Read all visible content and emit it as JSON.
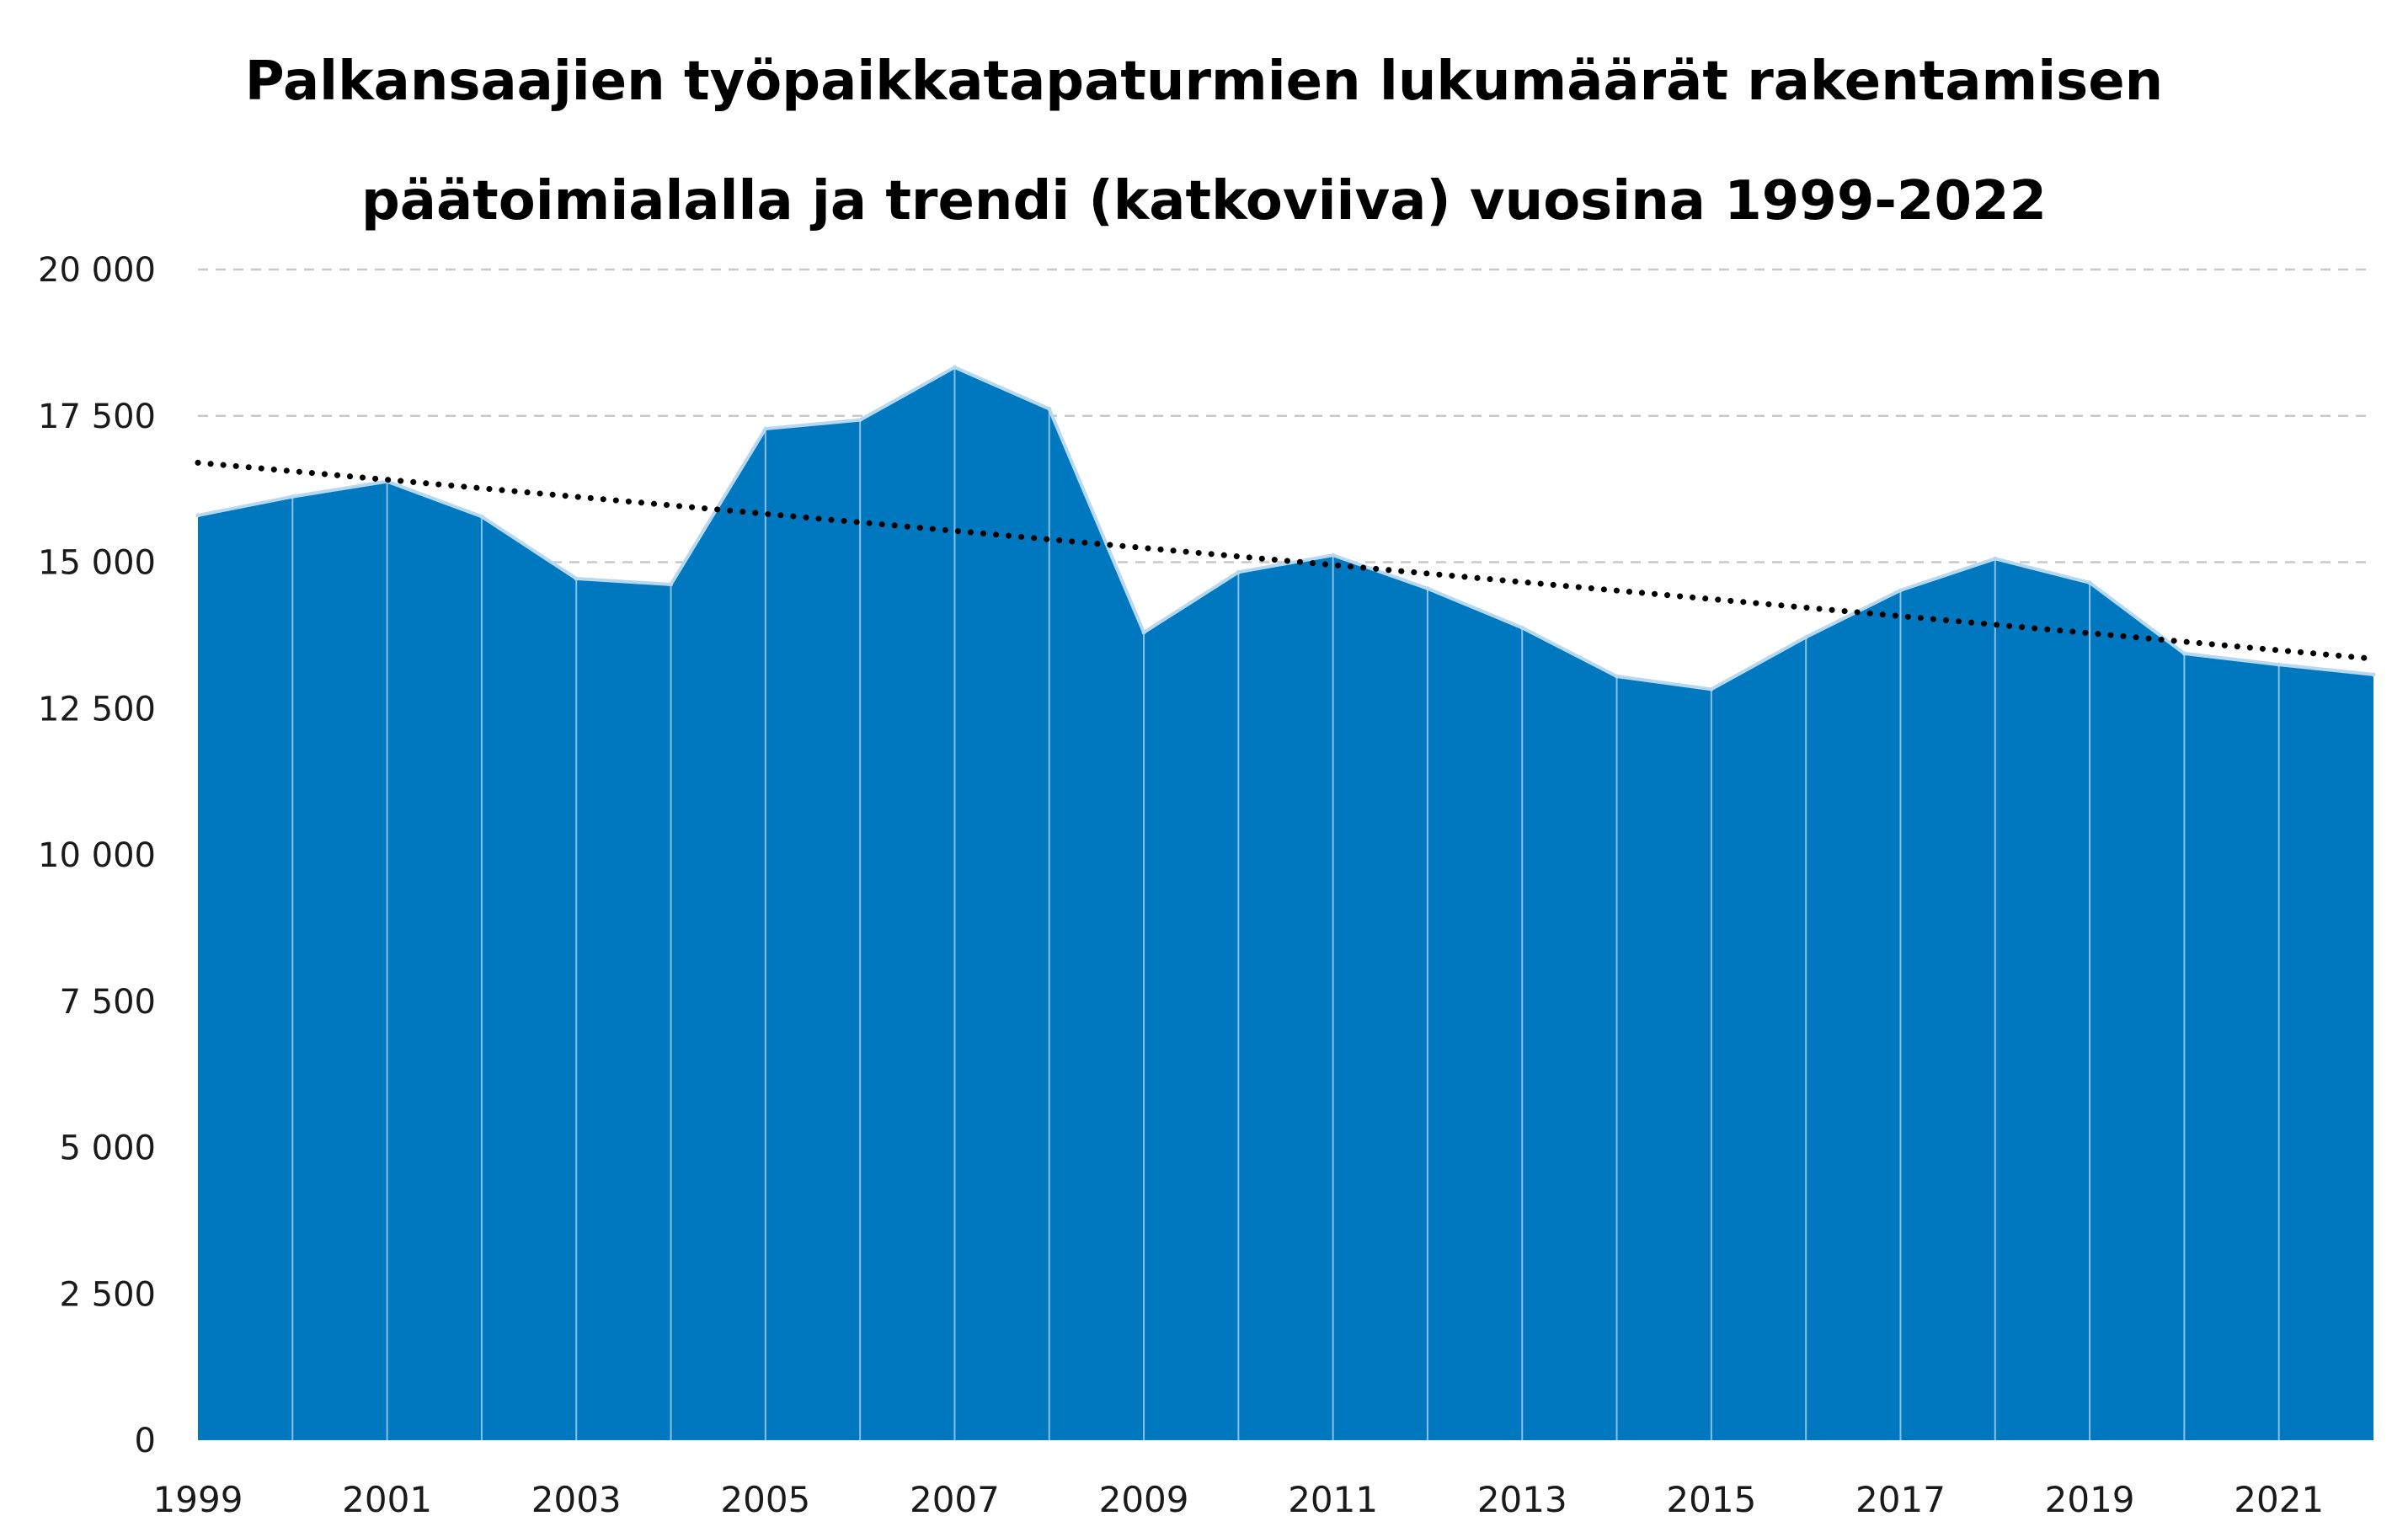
{
  "chart_data": {
    "type": "area",
    "title_lines": [
      "Palkansaajien työpaikkatapaturmien lukumäärät rakentamisen",
      "päätoimialalla ja trendi (katkoviiva) vuosina 1999-2022"
    ],
    "x": [
      1999,
      2000,
      2001,
      2002,
      2003,
      2004,
      2005,
      2006,
      2007,
      2008,
      2009,
      2010,
      2011,
      2012,
      2013,
      2014,
      2015,
      2016,
      2017,
      2018,
      2019,
      2020,
      2021,
      2022
    ],
    "x_tick_labels": [
      "1999",
      "2001",
      "2003",
      "2005",
      "2007",
      "2009",
      "2011",
      "2013",
      "2015",
      "2017",
      "2019",
      "2021"
    ],
    "series": [
      {
        "values": [
          15800,
          16120,
          16380,
          15780,
          14720,
          14620,
          17280,
          17430,
          18330,
          17620,
          13800,
          14830,
          15120,
          14550,
          13880,
          13050,
          12830,
          13720,
          14520,
          15060,
          14650,
          13440,
          13250,
          13080
        ],
        "color": "#0078C0",
        "edge_color": "#B8D8F0"
      }
    ],
    "trend": {
      "start": 16700,
      "end": 13350,
      "color": "#000000",
      "style": "dotted"
    },
    "y_tick_labels": [
      "0",
      "2 500",
      "5 000",
      "7 500",
      "10 000",
      "12 500",
      "15 000",
      "17 500",
      "20 000"
    ],
    "ylim": [
      0,
      20000
    ],
    "y_step": 2500,
    "grid": true,
    "grid_color": "#C8C8C8"
  }
}
